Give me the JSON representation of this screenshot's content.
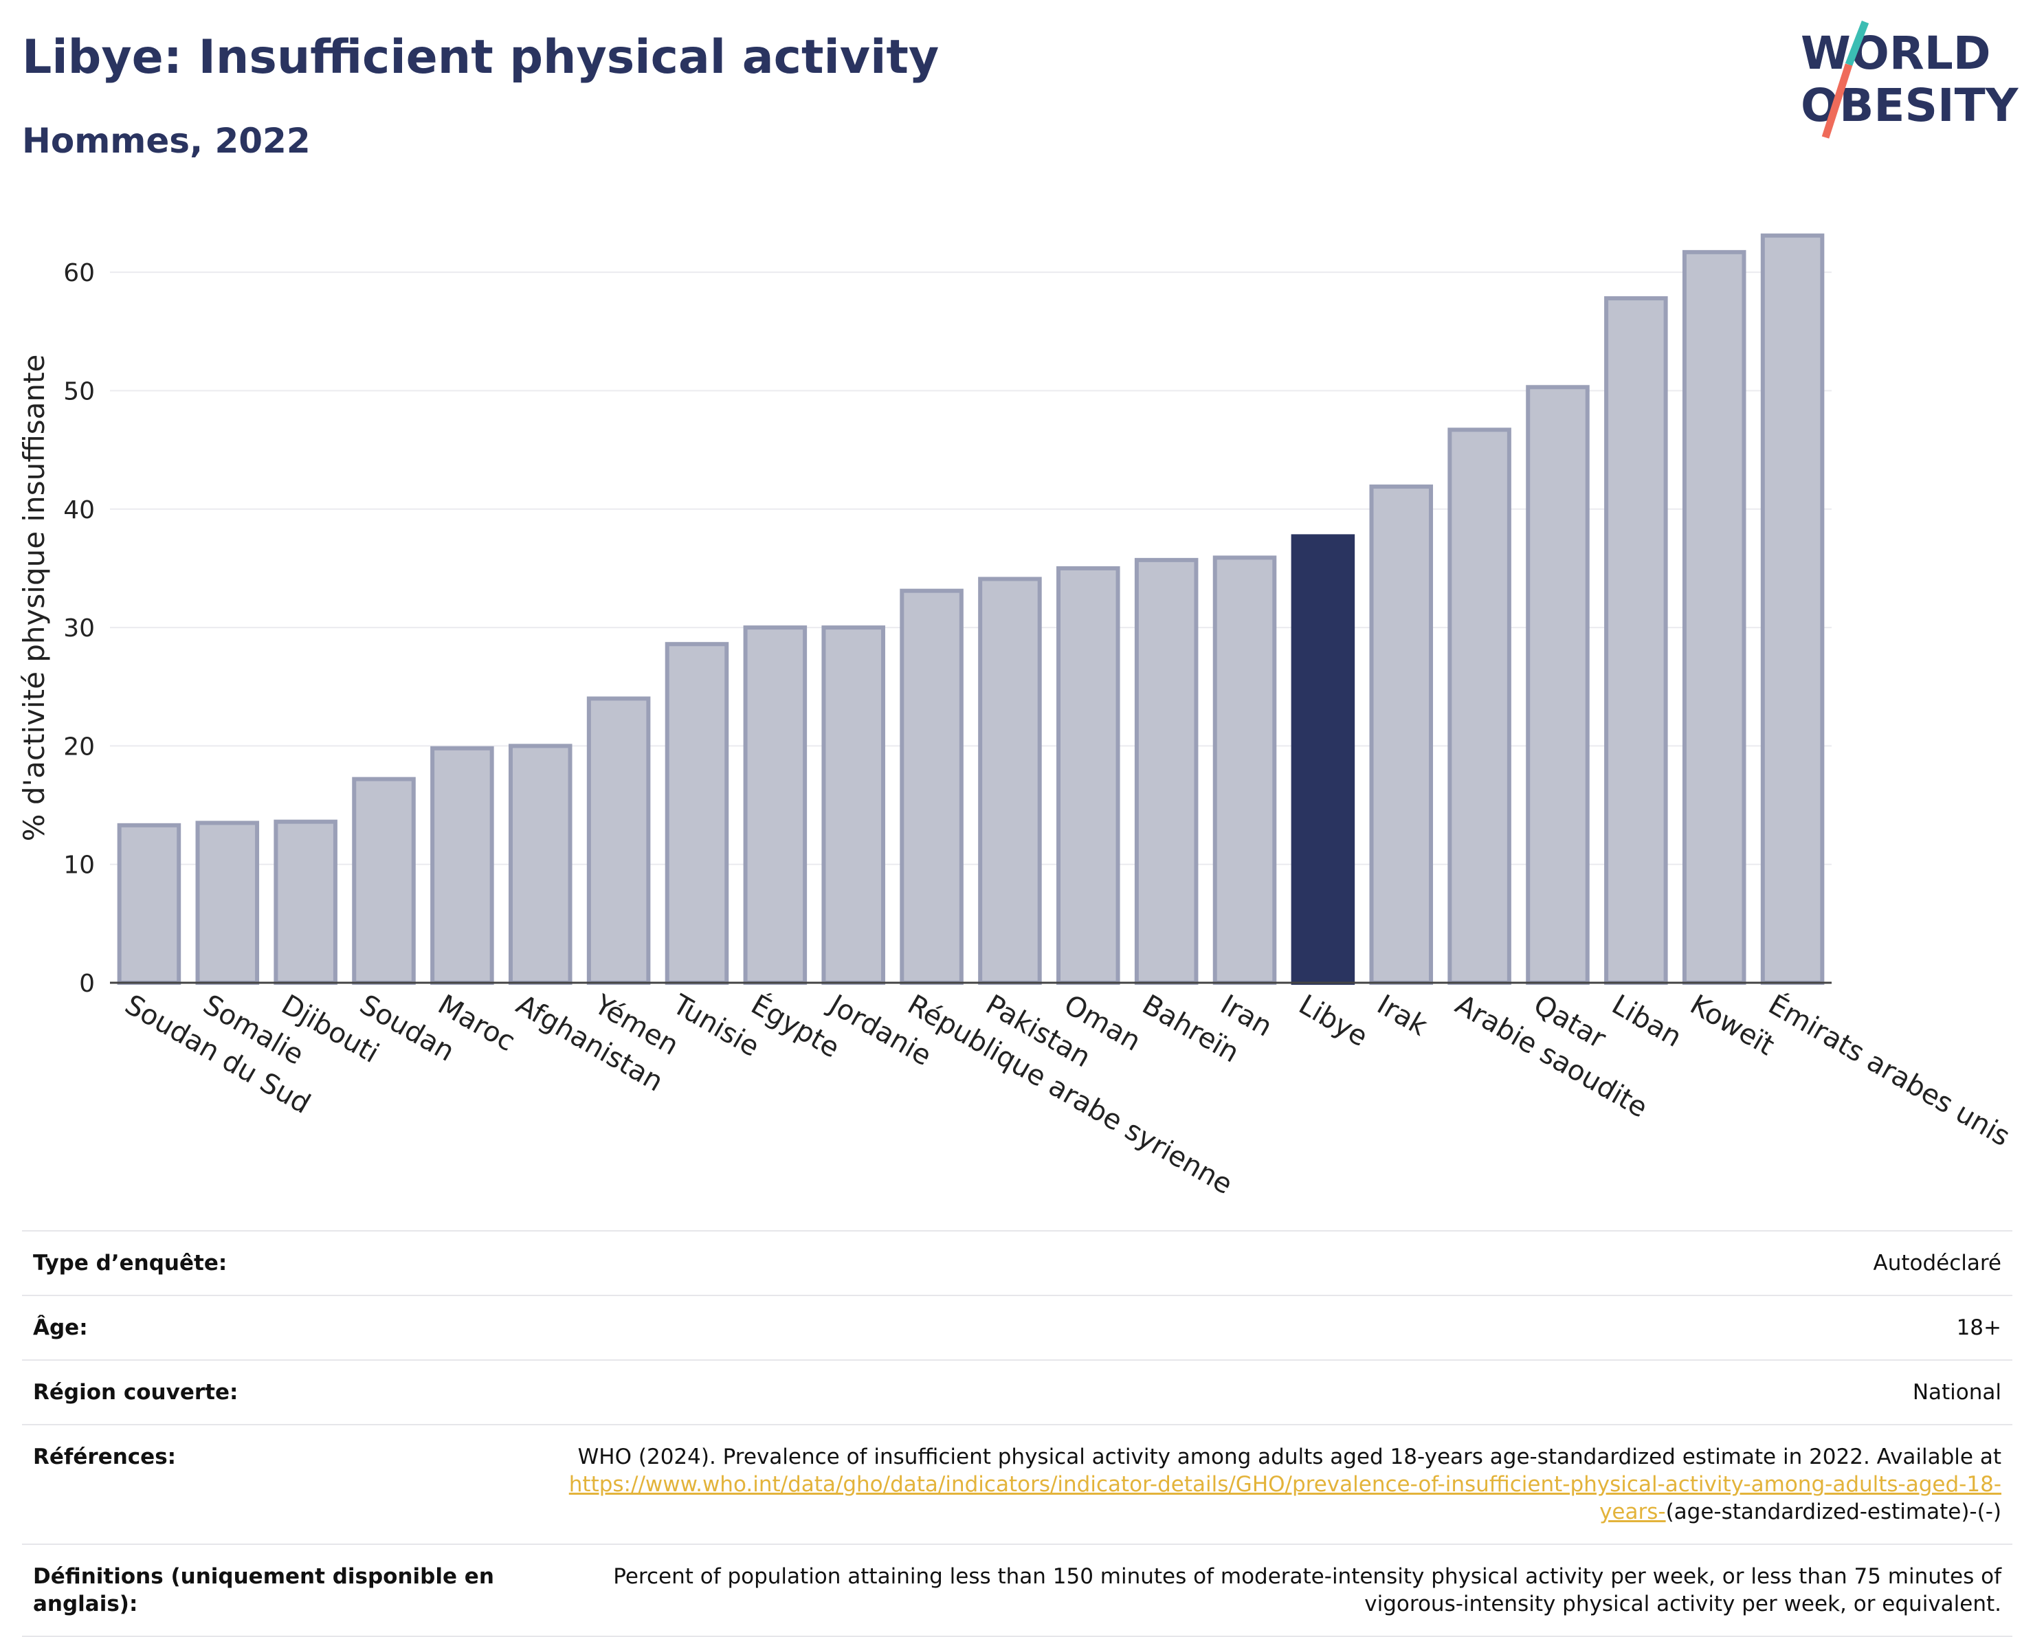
{
  "header": {
    "title": "Libye: Insufficient physical activity",
    "subtitle": "Hommes, 2022"
  },
  "logo": {
    "line1": "WORLD",
    "line2": "OBESITY"
  },
  "colors": {
    "highlight": "#2a3460",
    "bar": "#bfc2cf",
    "bar_border": "#9a9fb7",
    "link": "#e3b33a"
  },
  "chart_data": {
    "type": "bar",
    "ylabel": "% d'activité physique insuffisante",
    "ylim": [
      0,
      65
    ],
    "yticks": [
      0,
      10,
      20,
      30,
      40,
      50,
      60
    ],
    "grid": true,
    "highlight": "Libye",
    "categories": [
      "Soudan du Sud",
      "Somalie",
      "Djibouti",
      "Soudan",
      "Maroc",
      "Afghanistan",
      "Yémen",
      "Tunisie",
      "Égypte",
      "Jordanie",
      "République arabe syrienne",
      "Pakistan",
      "Oman",
      "Bahreïn",
      "Iran",
      "Libye",
      "Irak",
      "Arabie saoudite",
      "Qatar",
      "Liban",
      "Koweït",
      "Émirats arabes unis"
    ],
    "values": [
      13.3,
      13.5,
      13.6,
      17.2,
      19.8,
      20.0,
      24.0,
      28.6,
      30.0,
      30.0,
      33.1,
      34.1,
      35.0,
      35.7,
      35.9,
      37.7,
      41.9,
      46.7,
      50.3,
      57.8,
      61.7,
      63.1
    ]
  },
  "info": {
    "rows": [
      {
        "label": "Type d’enquête:",
        "value": "Autodéclaré"
      },
      {
        "label": "Âge:",
        "value": "18+"
      },
      {
        "label": "Région couverte:",
        "value": "National"
      }
    ],
    "references": {
      "label": "Références:",
      "text": "WHO (2024). Prevalence of insufficient physical activity among adults aged 18-years age-standardized estimate in 2022. Available at",
      "link": "https://www.who.int/data/gho/data/indicators/indicator-details/GHO/prevalence-of-insufficient-physical-activity-among-adults-aged-18-years-",
      "suffix": "(age-standardized-estimate)-(-)"
    },
    "definitions": {
      "label": "Définitions (uniquement disponible en anglais):",
      "value": "Percent of population attaining less than 150 minutes of moderate-intensity physical activity per week, or less than 75 minutes of vigorous-intensity physical activity per week, or equivalent."
    }
  }
}
